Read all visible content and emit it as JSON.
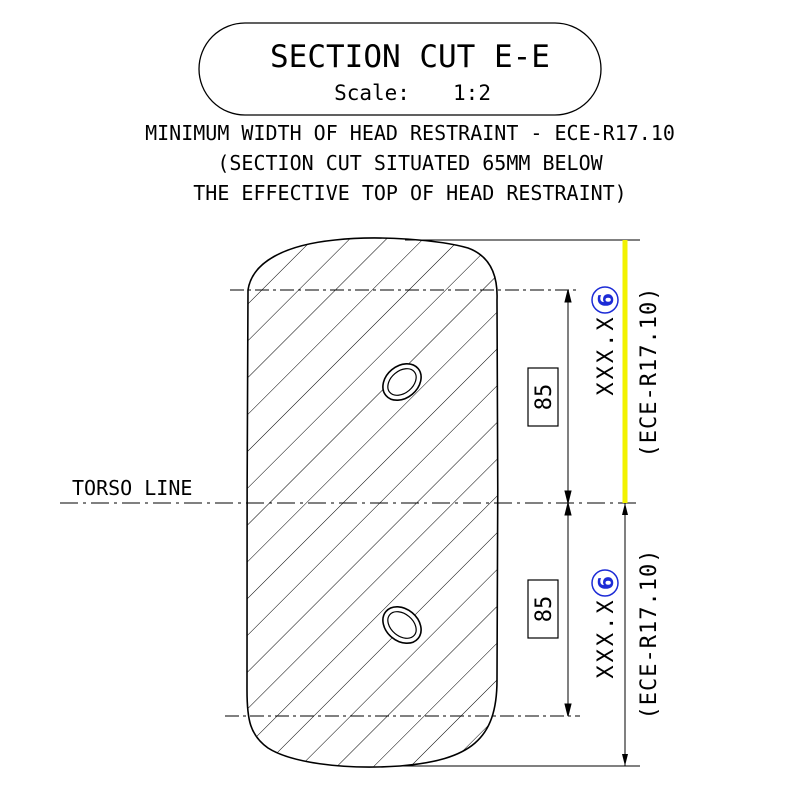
{
  "title_box": {
    "title": "SECTION CUT E-E",
    "scale_label": "Scale:",
    "scale_value": "1:2"
  },
  "description": {
    "line1": "MINIMUM WIDTH OF HEAD RESTRAINT - ECE-R17.10",
    "line2": "(SECTION CUT SITUATED 65MM BELOW",
    "line3": "THE EFFECTIVE TOP OF HEAD RESTRAINT)"
  },
  "torso_label": "TORSO LINE",
  "dimensions": {
    "upper": {
      "value": "85",
      "measured": "XXX.X",
      "note_number": "6",
      "standard": "(ECE-R17.10)"
    },
    "lower": {
      "value": "85",
      "measured": "XXX.X",
      "note_number": "6",
      "standard": "(ECE-R17.10)"
    }
  },
  "colors": {
    "line": "#000000",
    "highlight": "#f2f200",
    "note_circle": "#1c2bd6"
  }
}
